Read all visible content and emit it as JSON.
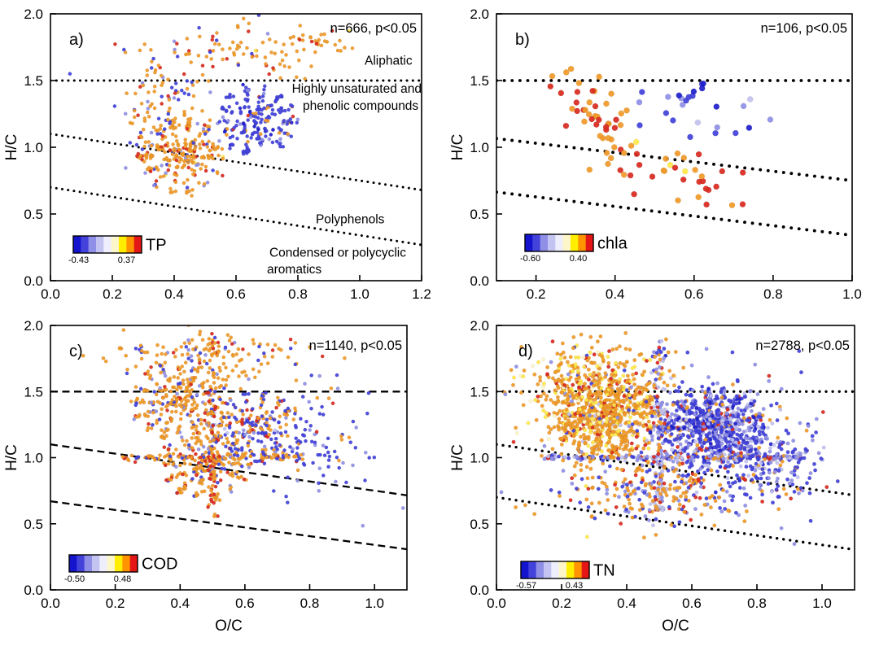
{
  "figure": {
    "background": "#ffffff",
    "axis_color": "#000000"
  },
  "palette": {
    "darkblue": "#2020cc",
    "blue": "#4343dc",
    "periwinkle": "#9090e6",
    "lightlav": "#c2c2f0",
    "paleblue": "#e8e8fb",
    "cream": "#fdf5c8",
    "yellow": "#ffe84a",
    "orange": "#f09a28",
    "red": "#d92b20"
  },
  "colorbar_colors": [
    "#1414cf",
    "#4343dc",
    "#8f8fe8",
    "#c4c4f2",
    "#eeeefc",
    "#fdf6c8",
    "#ffee00",
    "#ff9400",
    "#e51616"
  ],
  "chart_data": [
    {
      "id": "a",
      "type": "scatter",
      "panel_label": "a)",
      "n_label": "n=666, p<0.05",
      "xlabel": "",
      "ylabel": "H/C",
      "xlim": [
        0,
        1.2
      ],
      "ylim": [
        0,
        2.0
      ],
      "xtick_vals": [
        0,
        0.2,
        0.4,
        0.6,
        0.8,
        1.0,
        1.2
      ],
      "xtick_labels": [
        "0.0",
        "0.2",
        "0.4",
        "0.6",
        "0.8",
        "1.0",
        "1.2"
      ],
      "ytick_vals": [
        0,
        0.5,
        1.0,
        1.5,
        2.0
      ],
      "ytick_labels": [
        "0.0",
        "0.5",
        "1.0",
        "1.5",
        "2.0"
      ],
      "line_style": "dotted",
      "ref_lines": [
        {
          "intercept": 1.5,
          "slope": 0
        },
        {
          "intercept": 1.1,
          "slope": -0.35
        },
        {
          "intercept": 0.7,
          "slope": -0.36
        }
      ],
      "colorbar": {
        "label": "TP",
        "min": "-0.43",
        "max": "0.37"
      },
      "annotations": [
        {
          "text": "Aliphatic",
          "x": 1.17,
          "y": 1.65,
          "anchor": "end"
        },
        {
          "text": "Highly unsaturated and",
          "x": 1.2,
          "y": 1.44,
          "anchor": "end"
        },
        {
          "text": "phenolic compounds",
          "x": 1.19,
          "y": 1.31,
          "anchor": "end"
        },
        {
          "text": "Polyphenols",
          "x": 1.08,
          "y": 0.46,
          "anchor": "end"
        },
        {
          "text": "Condensed or polycyclic",
          "x": 1.15,
          "y": 0.21,
          "anchor": "end"
        },
        {
          "text": "aromatics",
          "x": 0.7,
          "y": 0.085,
          "anchor": "start"
        }
      ],
      "marker_radius": 2.2,
      "seed": 11,
      "clusters": [
        {
          "kind": "star",
          "n": 215,
          "cx": 0.42,
          "cy": 0.93,
          "rx": 0.14,
          "ry": 0.3,
          "rays": 14,
          "colors": [
            [
              "orange",
              0.72
            ],
            [
              "red",
              0.12
            ],
            [
              "blue",
              0.08
            ],
            [
              "periwinkle",
              0.05
            ],
            [
              "yellow",
              0.03
            ]
          ]
        },
        {
          "kind": "gauss",
          "n": 105,
          "cx": 0.36,
          "cy": 1.33,
          "sx": 0.08,
          "sy": 0.2,
          "colors": [
            [
              "orange",
              0.55
            ],
            [
              "blue",
              0.28
            ],
            [
              "periwinkle",
              0.09
            ],
            [
              "red",
              0.08
            ]
          ]
        },
        {
          "kind": "star",
          "n": 205,
          "cx": 0.66,
          "cy": 1.2,
          "rx": 0.14,
          "ry": 0.26,
          "rays": 14,
          "colors": [
            [
              "blue",
              0.72
            ],
            [
              "darkblue",
              0.1
            ],
            [
              "periwinkle",
              0.08
            ],
            [
              "orange",
              0.08
            ],
            [
              "red",
              0.02
            ]
          ]
        },
        {
          "kind": "gauss",
          "n": 95,
          "cx": 0.62,
          "cy": 1.73,
          "sx": 0.17,
          "sy": 0.11,
          "colors": [
            [
              "orange",
              0.68
            ],
            [
              "red",
              0.14
            ],
            [
              "blue",
              0.1
            ],
            [
              "periwinkle",
              0.04
            ],
            [
              "yellow",
              0.04
            ]
          ]
        },
        {
          "kind": "hline",
          "n": 28,
          "y": 1.0,
          "x1": 0.3,
          "x2": 0.56,
          "jit": 0.012,
          "colors": [
            [
              "orange",
              0.8
            ],
            [
              "red",
              0.2
            ]
          ]
        },
        {
          "kind": "line",
          "n": 18,
          "x1": 0.8,
          "y1": 1.85,
          "x2": 0.95,
          "y2": 1.72,
          "jx": 0.02,
          "jy": 0.02,
          "colors": [
            [
              "orange",
              0.8
            ],
            [
              "red",
              0.2
            ]
          ]
        }
      ]
    },
    {
      "id": "b",
      "type": "scatter",
      "panel_label": "b)",
      "n_label": "n=106, p<0.05",
      "xlabel": "",
      "ylabel": "H/C",
      "xlim": [
        0.1,
        1.0
      ],
      "ylim": [
        0,
        2.0
      ],
      "xtick_vals": [
        0.2,
        0.4,
        0.6,
        0.8,
        1.0
      ],
      "xtick_labels": [
        "0.2",
        "0.4",
        "0.6",
        "0.8",
        "1.0"
      ],
      "ytick_vals": [
        0,
        0.5,
        1.0,
        1.5,
        2.0
      ],
      "ytick_labels": [
        "0.0",
        "0.5",
        "1.0",
        "1.5",
        "2.0"
      ],
      "line_style": "dotted",
      "ref_lines": [
        {
          "intercept": 1.5,
          "slope": 0
        },
        {
          "intercept": 1.1,
          "slope": -0.35
        },
        {
          "intercept": 0.7,
          "slope": -0.36
        }
      ],
      "colorbar": {
        "label": "chla",
        "min": "-0.60",
        "max": "0.40"
      },
      "annotations": [],
      "marker_radius": 3.6,
      "seed": 22,
      "clusters": [
        {
          "kind": "line",
          "n": 34,
          "x1": 0.3,
          "y1": 1.5,
          "x2": 0.41,
          "y2": 1.02,
          "jx": 0.035,
          "jy": 0.06,
          "colors": [
            [
              "orange",
              0.55
            ],
            [
              "red",
              0.4
            ],
            [
              "yellow",
              0.05
            ]
          ]
        },
        {
          "kind": "gauss",
          "n": 12,
          "cx": 0.36,
          "cy": 1.18,
          "sx": 0.035,
          "sy": 0.12,
          "colors": [
            [
              "red",
              0.5
            ],
            [
              "orange",
              0.5
            ]
          ]
        },
        {
          "kind": "gauss",
          "n": 34,
          "cx": 0.55,
          "cy": 0.8,
          "sx": 0.11,
          "sy": 0.11,
          "colors": [
            [
              "red",
              0.62
            ],
            [
              "orange",
              0.33
            ],
            [
              "yellow",
              0.05
            ]
          ]
        },
        {
          "kind": "gauss",
          "n": 20,
          "cx": 0.58,
          "cy": 1.33,
          "sx": 0.08,
          "sy": 0.12,
          "colors": [
            [
              "blue",
              0.35
            ],
            [
              "darkblue",
              0.3
            ],
            [
              "periwinkle",
              0.2
            ],
            [
              "lightlav",
              0.15
            ]
          ]
        },
        {
          "kind": "gauss",
          "n": 6,
          "cx": 0.72,
          "cy": 1.25,
          "sx": 0.05,
          "sy": 0.15,
          "colors": [
            [
              "periwinkle",
              0.5
            ],
            [
              "lightlav",
              0.3
            ],
            [
              "blue",
              0.2
            ]
          ]
        }
      ]
    },
    {
      "id": "c",
      "type": "scatter",
      "panel_label": "c)",
      "n_label": "n=1140, p<0.05",
      "xlabel": "O/C",
      "ylabel": "H/C",
      "xlim": [
        0,
        1.1
      ],
      "ylim": [
        0,
        2.0
      ],
      "xtick_vals": [
        0,
        0.2,
        0.4,
        0.6,
        0.8,
        1.0
      ],
      "xtick_labels": [
        "0.0",
        "0.2",
        "0.4",
        "0.6",
        "0.8",
        "1.0"
      ],
      "ytick_vals": [
        0,
        0.5,
        1.0,
        1.5,
        2.0
      ],
      "ytick_labels": [
        "0.0",
        "0.5",
        "1.0",
        "1.5",
        "2.0"
      ],
      "line_style": "dashed",
      "ref_lines": [
        {
          "intercept": 1.5,
          "slope": 0
        },
        {
          "intercept": 1.1,
          "slope": -0.35
        },
        {
          "intercept": 0.67,
          "slope": -0.33
        }
      ],
      "colorbar": {
        "label": "COD",
        "min": "-0.50",
        "max": "0.48"
      },
      "annotations": [],
      "marker_radius": 2.2,
      "seed": 33,
      "clusters": [
        {
          "kind": "star",
          "n": 270,
          "cx": 0.4,
          "cy": 1.42,
          "rx": 0.15,
          "ry": 0.3,
          "rays": 16,
          "colors": [
            [
              "orange",
              0.78
            ],
            [
              "red",
              0.08
            ],
            [
              "blue",
              0.09
            ],
            [
              "periwinkle",
              0.05
            ]
          ]
        },
        {
          "kind": "star",
          "n": 230,
          "cx": 0.48,
          "cy": 0.95,
          "rx": 0.14,
          "ry": 0.27,
          "rays": 14,
          "colors": [
            [
              "orange",
              0.68
            ],
            [
              "red",
              0.12
            ],
            [
              "blue",
              0.14
            ],
            [
              "periwinkle",
              0.06
            ]
          ]
        },
        {
          "kind": "star",
          "n": 210,
          "cx": 0.63,
          "cy": 1.25,
          "rx": 0.15,
          "ry": 0.27,
          "rays": 14,
          "colors": [
            [
              "blue",
              0.42
            ],
            [
              "orange",
              0.36
            ],
            [
              "periwinkle",
              0.1
            ],
            [
              "red",
              0.09
            ],
            [
              "lightlav",
              0.03
            ]
          ]
        },
        {
          "kind": "gauss",
          "n": 140,
          "cx": 0.5,
          "cy": 1.77,
          "sx": 0.16,
          "sy": 0.1,
          "colors": [
            [
              "orange",
              0.74
            ],
            [
              "blue",
              0.12
            ],
            [
              "red",
              0.09
            ],
            [
              "periwinkle",
              0.05
            ]
          ]
        },
        {
          "kind": "gauss",
          "n": 110,
          "cx": 0.82,
          "cy": 1.1,
          "sx": 0.09,
          "sy": 0.24,
          "colors": [
            [
              "blue",
              0.58
            ],
            [
              "periwinkle",
              0.16
            ],
            [
              "orange",
              0.18
            ],
            [
              "red",
              0.08
            ]
          ]
        },
        {
          "kind": "vline",
          "n": 80,
          "x": 0.5,
          "y1": 0.55,
          "y2": 1.95,
          "jit": 0.012,
          "colors": [
            [
              "orange",
              0.55
            ],
            [
              "blue",
              0.2
            ],
            [
              "red",
              0.25
            ]
          ]
        },
        {
          "kind": "hline",
          "n": 100,
          "y": 1.0,
          "x1": 0.22,
          "x2": 0.78,
          "jit": 0.012,
          "colors": [
            [
              "orange",
              0.62
            ],
            [
              "red",
              0.17
            ],
            [
              "blue",
              0.21
            ]
          ]
        }
      ]
    },
    {
      "id": "d",
      "type": "scatter",
      "panel_label": "d)",
      "n_label": "n=2788, p<0.05",
      "xlabel": "O/C",
      "ylabel": "H/C",
      "xlim": [
        0,
        1.1
      ],
      "ylim": [
        0,
        2.0
      ],
      "xtick_vals": [
        0,
        0.2,
        0.4,
        0.6,
        0.8,
        1.0
      ],
      "xtick_labels": [
        "0.0",
        "0.2",
        "0.4",
        "0.6",
        "0.8",
        "1.0"
      ],
      "ytick_vals": [
        0,
        0.5,
        1.0,
        1.5,
        2.0
      ],
      "ytick_labels": [
        "0.0",
        "0.5",
        "1.0",
        "1.5",
        "2.0"
      ],
      "line_style": "dotted",
      "ref_lines": [
        {
          "intercept": 1.5,
          "slope": 0
        },
        {
          "intercept": 1.1,
          "slope": -0.35
        },
        {
          "intercept": 0.7,
          "slope": -0.36
        }
      ],
      "colorbar": {
        "label": "TN",
        "min": "-0.57",
        "max": "0.43"
      },
      "annotations": [],
      "marker_radius": 2.3,
      "seed": 44,
      "clusters": [
        {
          "kind": "star",
          "n": 640,
          "cx": 0.33,
          "cy": 1.33,
          "rx": 0.17,
          "ry": 0.32,
          "rays": 18,
          "colors": [
            [
              "orange",
              0.66
            ],
            [
              "yellow",
              0.14
            ],
            [
              "red",
              0.07
            ],
            [
              "cream",
              0.06
            ],
            [
              "lightlav",
              0.04
            ],
            [
              "blue",
              0.03
            ]
          ]
        },
        {
          "kind": "gauss",
          "n": 330,
          "cx": 0.33,
          "cy": 1.3,
          "sx": 0.12,
          "sy": 0.26,
          "colors": [
            [
              "orange",
              0.62
            ],
            [
              "yellow",
              0.16
            ],
            [
              "red",
              0.08
            ],
            [
              "cream",
              0.07
            ],
            [
              "periwinkle",
              0.04
            ],
            [
              "blue",
              0.03
            ]
          ]
        },
        {
          "kind": "star",
          "n": 640,
          "cx": 0.67,
          "cy": 1.22,
          "rx": 0.16,
          "ry": 0.3,
          "rays": 18,
          "colors": [
            [
              "blue",
              0.42
            ],
            [
              "periwinkle",
              0.22
            ],
            [
              "darkblue",
              0.12
            ],
            [
              "lightlav",
              0.14
            ],
            [
              "orange",
              0.05
            ],
            [
              "red",
              0.05
            ]
          ]
        },
        {
          "kind": "gauss",
          "n": 330,
          "cx": 0.67,
          "cy": 1.18,
          "sx": 0.12,
          "sy": 0.24,
          "colors": [
            [
              "blue",
              0.4
            ],
            [
              "periwinkle",
              0.24
            ],
            [
              "darkblue",
              0.1
            ],
            [
              "lightlav",
              0.16
            ],
            [
              "orange",
              0.05
            ],
            [
              "red",
              0.05
            ]
          ]
        },
        {
          "kind": "vline",
          "n": 140,
          "x": 0.5,
          "y1": 0.6,
          "y2": 1.9,
          "jit": 0.01,
          "colors": [
            [
              "lightlav",
              0.38
            ],
            [
              "periwinkle",
              0.25
            ],
            [
              "blue",
              0.12
            ],
            [
              "orange",
              0.13
            ],
            [
              "red",
              0.12
            ]
          ]
        },
        {
          "kind": "hline",
          "n": 170,
          "y": 1.0,
          "x1": 0.12,
          "x2": 0.95,
          "jit": 0.01,
          "colors": [
            [
              "periwinkle",
              0.3
            ],
            [
              "blue",
              0.22
            ],
            [
              "lightlav",
              0.2
            ],
            [
              "orange",
              0.16
            ],
            [
              "red",
              0.12
            ]
          ]
        },
        {
          "kind": "gauss",
          "n": 230,
          "cx": 0.5,
          "cy": 0.75,
          "sx": 0.16,
          "sy": 0.12,
          "colors": [
            [
              "orange",
              0.44
            ],
            [
              "blue",
              0.22
            ],
            [
              "red",
              0.16
            ],
            [
              "periwinkle",
              0.18
            ]
          ]
        },
        {
          "kind": "gauss",
          "n": 170,
          "cx": 0.27,
          "cy": 1.62,
          "sx": 0.11,
          "sy": 0.13,
          "colors": [
            [
              "orange",
              0.58
            ],
            [
              "yellow",
              0.22
            ],
            [
              "cream",
              0.08
            ],
            [
              "red",
              0.08
            ],
            [
              "periwinkle",
              0.04
            ]
          ]
        },
        {
          "kind": "gauss",
          "n": 138,
          "cx": 0.85,
          "cy": 1.0,
          "sx": 0.07,
          "sy": 0.18,
          "colors": [
            [
              "blue",
              0.5
            ],
            [
              "periwinkle",
              0.3
            ],
            [
              "lightlav",
              0.1
            ],
            [
              "orange",
              0.1
            ]
          ]
        }
      ]
    }
  ]
}
